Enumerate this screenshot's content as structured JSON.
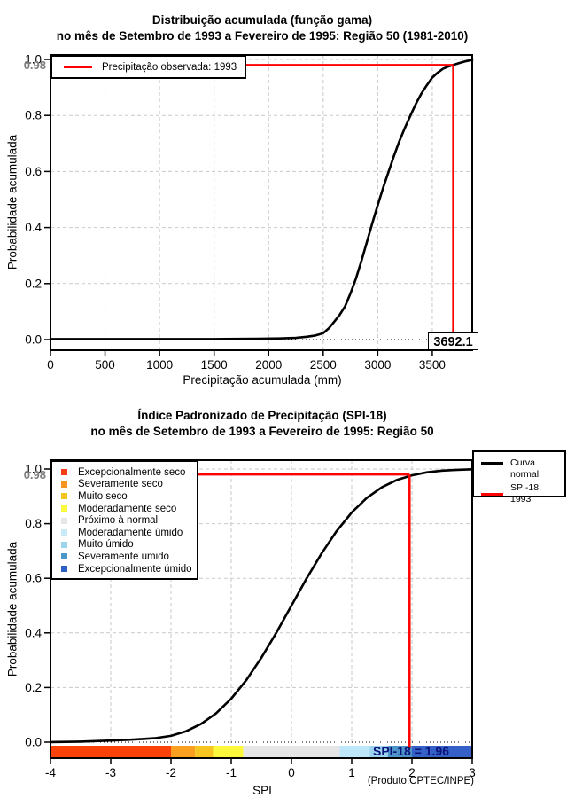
{
  "chart_data": [
    {
      "type": "line",
      "title": "Distribuição acumulada (função gama)",
      "subtitle": "no mês de Setembro de 1993 a Fevereiro de 1995: Região 50 (1981-2010)",
      "xlabel": "Precipitação acumulada (mm)",
      "ylabel": "Probabilidade acumulada",
      "xlim": [
        0,
        3866
      ],
      "ylim": [
        0,
        1
      ],
      "xticks": [
        0,
        500,
        1000,
        1500,
        2000,
        2500,
        3000,
        3500
      ],
      "yticks": [
        0,
        0.2,
        0.4,
        0.6,
        0.8,
        1
      ],
      "ytick_labels": [
        "0.0",
        "0.2",
        "0.4",
        "0.6",
        "0.8",
        "1.0"
      ],
      "grid": true,
      "legend": {
        "position": "top-left",
        "items": [
          {
            "label": "Precipitação observada: 1993",
            "color": "#FF0000"
          }
        ]
      },
      "series": [
        {
          "name": "Distribuição gama acumulada",
          "color": "#000000",
          "points": [
            [
              0,
              0.002
            ],
            [
              800,
              0.002
            ],
            [
              1500,
              0.002
            ],
            [
              1900,
              0.003
            ],
            [
              2100,
              0.004
            ],
            [
              2250,
              0.006
            ],
            [
              2350,
              0.01
            ],
            [
              2420,
              0.014
            ],
            [
              2460,
              0.018
            ],
            [
              2500,
              0.023
            ],
            [
              2550,
              0.04
            ],
            [
              2600,
              0.063
            ],
            [
              2650,
              0.088
            ],
            [
              2700,
              0.118
            ],
            [
              2750,
              0.165
            ],
            [
              2800,
              0.217
            ],
            [
              2850,
              0.28
            ],
            [
              2900,
              0.348
            ],
            [
              2950,
              0.415
            ],
            [
              3000,
              0.48
            ],
            [
              3050,
              0.542
            ],
            [
              3100,
              0.6
            ],
            [
              3150,
              0.657
            ],
            [
              3200,
              0.71
            ],
            [
              3250,
              0.757
            ],
            [
              3300,
              0.8
            ],
            [
              3350,
              0.842
            ],
            [
              3400,
              0.878
            ],
            [
              3450,
              0.908
            ],
            [
              3500,
              0.935
            ],
            [
              3550,
              0.953
            ],
            [
              3600,
              0.967
            ],
            [
              3650,
              0.975
            ],
            [
              3692,
              0.98
            ],
            [
              3740,
              0.986
            ],
            [
              3800,
              0.993
            ],
            [
              3866,
              0.998
            ]
          ]
        }
      ],
      "reference": {
        "prob": 0.98,
        "prob_label": "0.98",
        "x": 3692.1,
        "x_label": "3692.1",
        "color": "#FF0000",
        "label_color": "#7E7E7E"
      }
    },
    {
      "type": "line",
      "title": "Índice Padronizado de Precipitação (SPI-18)",
      "subtitle": "no mês de Setembro de 1993 a Fevereiro de 1995: Região 50",
      "xlabel": "SPI",
      "ylabel": "Probabilidade acumulada",
      "footnote": "(Produto:CPTEC/INPE)",
      "xlim": [
        -4,
        3
      ],
      "ylim": [
        0,
        1
      ],
      "xticks": [
        -4,
        -3,
        -2,
        -1,
        0,
        1,
        2,
        3
      ],
      "yticks": [
        0,
        0.2,
        0.4,
        0.6,
        0.8,
        1
      ],
      "ytick_labels": [
        "0.0",
        "0.2",
        "0.4",
        "0.6",
        "0.8",
        "1.0"
      ],
      "grid": true,
      "categories": [
        {
          "label": "Excepcionalmente seco",
          "color": "#F23D12"
        },
        {
          "label": "Severamente seco",
          "color": "#F5941E"
        },
        {
          "label": "Muito seco",
          "color": "#F6C51F"
        },
        {
          "label": "Moderadamente seco",
          "color": "#FBFA3D"
        },
        {
          "label": "Próximo à normal",
          "color": "#E6E6E6"
        },
        {
          "label": "Moderadamente úmido",
          "color": "#CBEAF8"
        },
        {
          "label": "Muito úmido",
          "color": "#9CD3EE"
        },
        {
          "label": "Severamente úmido",
          "color": "#4D95C9"
        },
        {
          "label": "Excepcionalmente úmido",
          "color": "#2E5FC4"
        }
      ],
      "colorbar": [
        {
          "from": -4,
          "to": -2,
          "color": "#FB4208"
        },
        {
          "from": -2,
          "to": -1.6,
          "color": "#FBA01E"
        },
        {
          "from": -1.6,
          "to": -1.3,
          "color": "#F7C51F"
        },
        {
          "from": -1.3,
          "to": -0.8,
          "color": "#FCF93C"
        },
        {
          "from": -0.8,
          "to": 0.8,
          "color": "#E6E6E6"
        },
        {
          "from": 0.8,
          "to": 1.3,
          "color": "#BFE7FA"
        },
        {
          "from": 1.3,
          "to": 1.6,
          "color": "#9CD3EE"
        },
        {
          "from": 1.6,
          "to": 2,
          "color": "#4D95C9"
        },
        {
          "from": 2,
          "to": 3,
          "color": "#3560C8"
        }
      ],
      "legend": {
        "position": "top-right",
        "items": [
          {
            "label": "Curva normal",
            "color": "#000000"
          },
          {
            "label": "SPI-18: 1993",
            "color": "#FF0000"
          }
        ]
      },
      "series": [
        {
          "name": "Curva normal",
          "color": "#000000",
          "points": [
            [
              -4,
              0.0003
            ],
            [
              -3.75,
              0.001
            ],
            [
              -3.5,
              0.002
            ],
            [
              -3.25,
              0.004
            ],
            [
              -3,
              0.006
            ],
            [
              -2.75,
              0.008
            ],
            [
              -2.5,
              0.011
            ],
            [
              -2.25,
              0.015
            ],
            [
              -2,
              0.023
            ],
            [
              -1.75,
              0.04
            ],
            [
              -1.5,
              0.067
            ],
            [
              -1.25,
              0.106
            ],
            [
              -1,
              0.159
            ],
            [
              -0.75,
              0.227
            ],
            [
              -0.5,
              0.309
            ],
            [
              -0.25,
              0.401
            ],
            [
              0,
              0.5
            ],
            [
              0.25,
              0.599
            ],
            [
              0.5,
              0.691
            ],
            [
              0.75,
              0.773
            ],
            [
              1,
              0.841
            ],
            [
              1.25,
              0.894
            ],
            [
              1.5,
              0.933
            ],
            [
              1.75,
              0.96
            ],
            [
              2,
              0.977
            ],
            [
              2.25,
              0.988
            ],
            [
              2.5,
              0.994
            ],
            [
              2.75,
              0.997
            ],
            [
              3,
              0.999
            ]
          ]
        }
      ],
      "reference": {
        "prob": 0.98,
        "prob_label": "0.98",
        "spi": 1.96,
        "text": "SPI-18 = 1.96",
        "color": "#FF0000",
        "label_color": "#7E7E7E",
        "text_color": "#0A1478"
      }
    }
  ]
}
